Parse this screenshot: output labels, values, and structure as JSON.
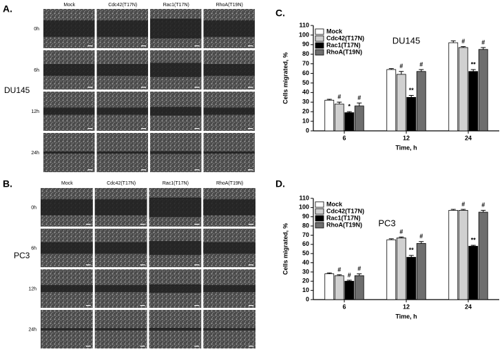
{
  "panels": [
    {
      "letter": "A.",
      "cell_line": "DU145",
      "columns": [
        "Mock",
        "Cdc42(T17N)",
        "Rac1(T17N)",
        "RhoA(T19N)"
      ],
      "rows": [
        "0h",
        "6h",
        "12h",
        "24h"
      ]
    },
    {
      "letter": "B.",
      "cell_line": "PC3",
      "columns": [
        "Mock",
        "Cdc42(T17N)",
        "Rac1(T17N)",
        "RhoA(T19N)"
      ],
      "rows": [
        "0h",
        "6h",
        "12h",
        "24h"
      ]
    }
  ],
  "chart_data": [
    {
      "type": "bar",
      "panel": "C.",
      "title": "DU145",
      "ylabel": "Cells migrated, %",
      "xlabel": "Time, h",
      "categories": [
        "6",
        "12",
        "24"
      ],
      "ylim": [
        0,
        110
      ],
      "yticks": [
        0,
        10,
        20,
        30,
        40,
        50,
        60,
        70,
        80,
        90,
        100,
        110
      ],
      "series": [
        {
          "name": "Mock",
          "color": "#ffffff",
          "values": [
            32,
            64,
            92
          ],
          "errors": [
            1,
            1,
            2
          ]
        },
        {
          "name": "Cdc42(T17N)",
          "color": "#d0d0d0",
          "values": [
            28,
            59,
            87
          ],
          "errors": [
            2,
            3,
            1
          ],
          "annotations": [
            "#",
            "#",
            "#"
          ]
        },
        {
          "name": "Rac1(T17N)",
          "color": "#000000",
          "values": [
            19,
            35,
            62
          ],
          "errors": [
            1,
            2,
            2
          ],
          "annotations": [
            "*",
            "**",
            "**"
          ]
        },
        {
          "name": "RhoA(T19N)",
          "color": "#6e6e6e",
          "values": [
            26,
            62,
            85
          ],
          "errors": [
            3,
            2,
            2
          ],
          "annotations": [
            "#",
            "#",
            "#"
          ]
        }
      ]
    },
    {
      "type": "bar",
      "panel": "D.",
      "title": "PC3",
      "ylabel": "Cells migrated, %",
      "xlabel": "Time, h",
      "categories": [
        "6",
        "12",
        "24"
      ],
      "ylim": [
        0,
        110
      ],
      "yticks": [
        0,
        10,
        20,
        30,
        40,
        50,
        60,
        70,
        80,
        90,
        100,
        110
      ],
      "series": [
        {
          "name": "Mock",
          "color": "#ffffff",
          "values": [
            28,
            65,
            97
          ],
          "errors": [
            1,
            1,
            1
          ]
        },
        {
          "name": "Cdc42(T17N)",
          "color": "#d0d0d0",
          "values": [
            26,
            67,
            97
          ],
          "errors": [
            1,
            1,
            1
          ],
          "annotations": [
            "#",
            "#",
            "#"
          ]
        },
        {
          "name": "Rac1(T17N)",
          "color": "#000000",
          "values": [
            20,
            46,
            58
          ],
          "errors": [
            1,
            2,
            1
          ],
          "annotations": [
            "#",
            "**",
            "**"
          ]
        },
        {
          "name": "RhoA(T19N)",
          "color": "#6e6e6e",
          "values": [
            26,
            61,
            95
          ],
          "errors": [
            2,
            2,
            2
          ],
          "annotations": [
            "#",
            "#",
            "#"
          ]
        }
      ]
    }
  ]
}
